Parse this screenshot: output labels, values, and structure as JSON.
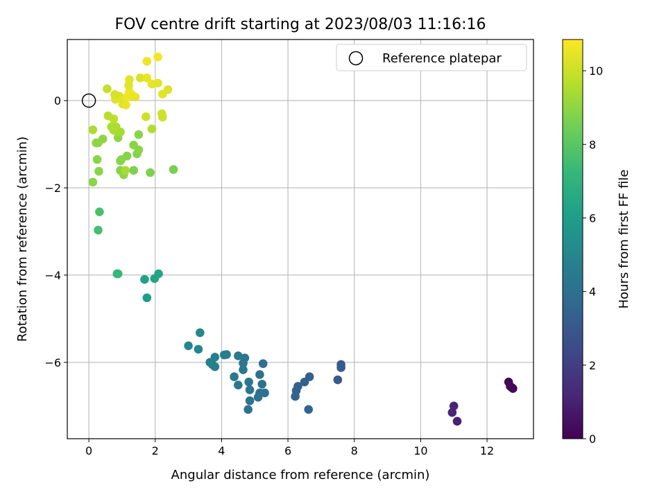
{
  "chart_data": {
    "type": "scatter",
    "title": "FOV centre drift starting at 2023/08/03 11:16:16",
    "xlabel": "Angular distance from reference (arcmin)",
    "ylabel": "Rotation from reference (arcmin)",
    "xlim": [
      -0.65,
      13.4
    ],
    "ylim": [
      -7.75,
      1.4
    ],
    "xticks": [
      0,
      2,
      4,
      6,
      8,
      10,
      12
    ],
    "yticks": [
      -6,
      -4,
      -2,
      0
    ],
    "grid": true,
    "legend": {
      "position": "top-right",
      "entries": [
        "Reference platepar"
      ]
    },
    "reference_point": {
      "x": 0,
      "y": 0
    },
    "colorbar": {
      "label": "Hours from first FF file",
      "range": [
        0,
        10.85
      ],
      "ticks": [
        0,
        2,
        4,
        6,
        8,
        10
      ],
      "colormap": [
        "#440154",
        "#482878",
        "#3e4989",
        "#31688e",
        "#26828e",
        "#1f9e89",
        "#35b779",
        "#6ece58",
        "#b5de2b",
        "#fde725"
      ]
    },
    "points": [
      {
        "x": 12.65,
        "y": -6.45,
        "c": 0.2
      },
      {
        "x": 12.7,
        "y": -6.55,
        "c": 0.25
      },
      {
        "x": 12.75,
        "y": -6.58,
        "c": 0.2
      },
      {
        "x": 12.78,
        "y": -6.6,
        "c": 0.15
      },
      {
        "x": 10.95,
        "y": -7.15,
        "c": 1.2
      },
      {
        "x": 11.0,
        "y": -7.0,
        "c": 1.1
      },
      {
        "x": 11.1,
        "y": -7.35,
        "c": 1.0
      },
      {
        "x": 7.6,
        "y": -6.05,
        "c": 3.2
      },
      {
        "x": 7.6,
        "y": -6.12,
        "c": 3.2
      },
      {
        "x": 7.5,
        "y": -6.4,
        "c": 3.1
      },
      {
        "x": 6.65,
        "y": -6.33,
        "c": 3.3
      },
      {
        "x": 6.5,
        "y": -6.45,
        "c": 3.3
      },
      {
        "x": 6.3,
        "y": -6.55,
        "c": 3.35
      },
      {
        "x": 6.25,
        "y": -6.65,
        "c": 3.4
      },
      {
        "x": 6.22,
        "y": -6.78,
        "c": 3.4
      },
      {
        "x": 6.62,
        "y": -7.08,
        "c": 3.5
      },
      {
        "x": 5.25,
        "y": -6.03,
        "c": 4.0
      },
      {
        "x": 5.15,
        "y": -6.28,
        "c": 4.0
      },
      {
        "x": 5.22,
        "y": -6.5,
        "c": 4.1
      },
      {
        "x": 5.3,
        "y": -6.7,
        "c": 4.0
      },
      {
        "x": 5.15,
        "y": -6.7,
        "c": 4.05
      },
      {
        "x": 5.1,
        "y": -6.8,
        "c": 4.1
      },
      {
        "x": 4.7,
        "y": -5.9,
        "c": 4.2
      },
      {
        "x": 4.65,
        "y": -6.02,
        "c": 4.2
      },
      {
        "x": 4.65,
        "y": -6.17,
        "c": 4.3
      },
      {
        "x": 4.5,
        "y": -5.85,
        "c": 4.4
      },
      {
        "x": 4.38,
        "y": -6.33,
        "c": 4.4
      },
      {
        "x": 4.5,
        "y": -6.52,
        "c": 4.3
      },
      {
        "x": 4.82,
        "y": -6.45,
        "c": 4.2
      },
      {
        "x": 4.85,
        "y": -6.63,
        "c": 4.2
      },
      {
        "x": 4.85,
        "y": -6.88,
        "c": 4.1
      },
      {
        "x": 4.8,
        "y": -7.08,
        "c": 4.15
      },
      {
        "x": 4.08,
        "y": -5.83,
        "c": 4.6
      },
      {
        "x": 4.15,
        "y": -5.82,
        "c": 4.6
      },
      {
        "x": 3.8,
        "y": -5.88,
        "c": 4.7
      },
      {
        "x": 3.65,
        "y": -6.0,
        "c": 4.7
      },
      {
        "x": 3.72,
        "y": -6.05,
        "c": 4.8
      },
      {
        "x": 3.8,
        "y": -6.1,
        "c": 4.7
      },
      {
        "x": 3.35,
        "y": -5.32,
        "c": 5.1
      },
      {
        "x": 3.3,
        "y": -5.7,
        "c": 5.0
      },
      {
        "x": 3.0,
        "y": -5.62,
        "c": 5.0
      },
      {
        "x": 2.1,
        "y": -3.97,
        "c": 6.3
      },
      {
        "x": 1.98,
        "y": -4.08,
        "c": 6.2
      },
      {
        "x": 1.68,
        "y": -4.1,
        "c": 6.2
      },
      {
        "x": 1.75,
        "y": -4.52,
        "c": 6.0
      },
      {
        "x": 0.85,
        "y": -3.97,
        "c": 7.2
      },
      {
        "x": 0.88,
        "y": -3.97,
        "c": 7.25
      },
      {
        "x": 0.32,
        "y": -2.55,
        "c": 7.7
      },
      {
        "x": 0.28,
        "y": -2.97,
        "c": 7.6
      },
      {
        "x": 2.55,
        "y": -1.58,
        "c": 8.6
      },
      {
        "x": 1.85,
        "y": -1.65,
        "c": 8.7
      },
      {
        "x": 1.35,
        "y": -1.6,
        "c": 8.7
      },
      {
        "x": 1.0,
        "y": -1.62,
        "c": 8.8
      },
      {
        "x": 0.95,
        "y": -1.6,
        "c": 8.8
      },
      {
        "x": 1.05,
        "y": -1.7,
        "c": 9.0
      },
      {
        "x": 1.1,
        "y": -1.6,
        "c": 9.4
      },
      {
        "x": 0.12,
        "y": -1.87,
        "c": 8.9
      },
      {
        "x": 0.3,
        "y": -1.62,
        "c": 8.9
      },
      {
        "x": 0.25,
        "y": -1.35,
        "c": 8.9
      },
      {
        "x": 0.95,
        "y": -1.38,
        "c": 8.8
      },
      {
        "x": 0.98,
        "y": -1.35,
        "c": 8.9
      },
      {
        "x": 1.15,
        "y": -1.27,
        "c": 8.8
      },
      {
        "x": 1.45,
        "y": -1.22,
        "c": 8.8
      },
      {
        "x": 1.5,
        "y": -1.13,
        "c": 8.9
      },
      {
        "x": 1.35,
        "y": -1.02,
        "c": 8.9
      },
      {
        "x": 0.22,
        "y": -0.97,
        "c": 9.0
      },
      {
        "x": 0.28,
        "y": -0.97,
        "c": 9.0
      },
      {
        "x": 0.42,
        "y": -0.88,
        "c": 9.0
      },
      {
        "x": 0.88,
        "y": -0.85,
        "c": 9.0
      },
      {
        "x": 1.5,
        "y": -0.78,
        "c": 8.9
      },
      {
        "x": 0.12,
        "y": -0.67,
        "c": 9.5
      },
      {
        "x": 0.75,
        "y": -0.68,
        "c": 9.4
      },
      {
        "x": 0.68,
        "y": -0.6,
        "c": 9.5
      },
      {
        "x": 0.82,
        "y": -0.6,
        "c": 9.5
      },
      {
        "x": 0.85,
        "y": -0.7,
        "c": 9.5
      },
      {
        "x": 0.95,
        "y": -0.72,
        "c": 9.4
      },
      {
        "x": 1.9,
        "y": -0.65,
        "c": 9.6
      },
      {
        "x": 0.58,
        "y": -0.35,
        "c": 9.7
      },
      {
        "x": 0.75,
        "y": -0.42,
        "c": 9.8
      },
      {
        "x": 1.72,
        "y": -0.37,
        "c": 10.0
      },
      {
        "x": 2.2,
        "y": -0.3,
        "c": 10.1
      },
      {
        "x": 2.22,
        "y": -0.38,
        "c": 10.1
      },
      {
        "x": 0.55,
        "y": 0.27,
        "c": 9.9
      },
      {
        "x": 0.78,
        "y": 0.14,
        "c": 10.2
      },
      {
        "x": 0.8,
        "y": 0.03,
        "c": 10.3
      },
      {
        "x": 0.92,
        "y": 0.1,
        "c": 10.2
      },
      {
        "x": 1.0,
        "y": 0.02,
        "c": 10.4
      },
      {
        "x": 1.02,
        "y": -0.08,
        "c": 10.3
      },
      {
        "x": 1.12,
        "y": -0.1,
        "c": 10.5
      },
      {
        "x": 1.15,
        "y": 0.08,
        "c": 10.6
      },
      {
        "x": 1.22,
        "y": 0.2,
        "c": 10.6
      },
      {
        "x": 1.28,
        "y": 0.15,
        "c": 10.7
      },
      {
        "x": 1.32,
        "y": 0.1,
        "c": 10.6
      },
      {
        "x": 1.4,
        "y": 0.08,
        "c": 10.5
      },
      {
        "x": 1.2,
        "y": 0.35,
        "c": 10.4
      },
      {
        "x": 1.22,
        "y": 0.48,
        "c": 10.4
      },
      {
        "x": 1.55,
        "y": 0.52,
        "c": 10.3
      },
      {
        "x": 1.75,
        "y": 0.52,
        "c": 10.5
      },
      {
        "x": 1.9,
        "y": 0.38,
        "c": 10.5
      },
      {
        "x": 2.08,
        "y": 0.4,
        "c": 10.4
      },
      {
        "x": 1.75,
        "y": 0.9,
        "c": 10.6
      },
      {
        "x": 2.08,
        "y": 1.0,
        "c": 10.7
      },
      {
        "x": 2.22,
        "y": 0.15,
        "c": 10.4
      },
      {
        "x": 2.38,
        "y": 0.25,
        "c": 10.3
      }
    ]
  }
}
